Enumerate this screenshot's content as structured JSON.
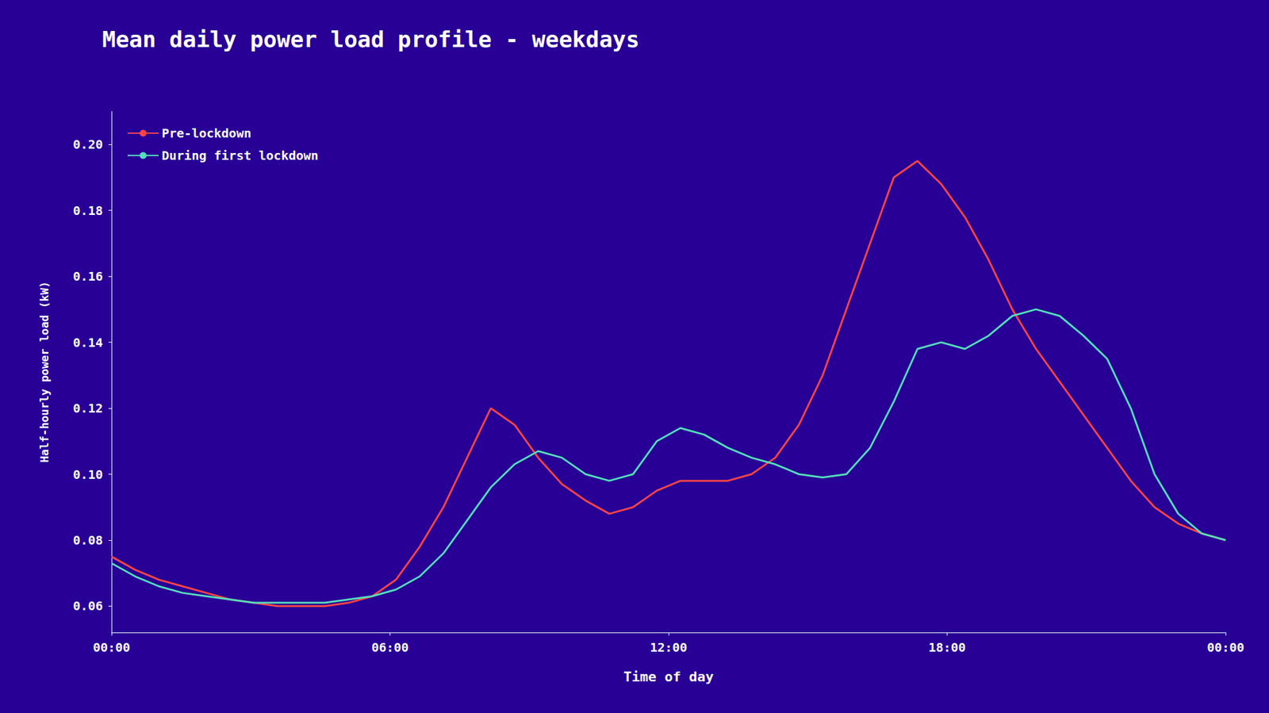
{
  "chart_data": {
    "type": "line",
    "title": "Mean daily power load profile - weekdays",
    "xlabel": "Time of day",
    "ylabel": "Half-hourly power load (kW)",
    "background_color": "#280096",
    "text_color": "#ffffff",
    "x": [
      0,
      1.0212765957,
      2.0425531915,
      3.0638297872,
      4.085106383,
      5.1063829787,
      6.1276595745,
      7.1489361702,
      8.170212766,
      9.1914893617,
      10.2127659574,
      11.2340425532,
      12.2553191489,
      13.2765957447,
      14.2978723404,
      15.3191489362,
      16.3404255319,
      17.3617021277,
      18.3829787234,
      19.4042553191,
      20.4255319149,
      21.4468085106,
      22.4680851064,
      23.4893617021,
      24.5106382979,
      25.5319148936,
      26.5531914894,
      27.5744680851,
      28.5957446809,
      29.6170212766,
      30.6382978723,
      31.6595744681,
      32.6808510638,
      33.7021276596,
      34.7234042553,
      35.7446808511,
      36.7659574468,
      37.7872340426,
      38.8085106383,
      39.829787234,
      40.8510638298,
      41.8723404255,
      42.8936170213,
      43.914893617,
      44.9361702128,
      45.9574468085,
      46.9787234043,
      48
    ],
    "xlim": [
      0,
      48
    ],
    "xticks": [
      {
        "value": 0,
        "label": "00:00"
      },
      {
        "value": 12,
        "label": "06:00"
      },
      {
        "value": 24,
        "label": "12:00"
      },
      {
        "value": 36,
        "label": "18:00"
      },
      {
        "value": 48,
        "label": "00:00"
      }
    ],
    "ylim": [
      0.052,
      0.21
    ],
    "yticks": [
      0.06,
      0.08,
      {
        "value": 0.1,
        "label": "0.10"
      },
      0.12,
      0.14,
      0.16,
      0.18,
      {
        "value": 0.2,
        "label": "0.20"
      }
    ],
    "grid": false,
    "legend": "upper left",
    "series": [
      {
        "name": "Pre-lockdown",
        "color": "#ff4444",
        "values": [
          0.075,
          0.071,
          0.068,
          0.066,
          0.064,
          0.062,
          0.061,
          0.06,
          0.06,
          0.06,
          0.061,
          0.063,
          0.068,
          0.078,
          0.09,
          0.105,
          0.12,
          0.115,
          0.105,
          0.097,
          0.092,
          0.088,
          0.09,
          0.095,
          0.098,
          0.098,
          0.098,
          0.1,
          0.105,
          0.115,
          0.13,
          0.15,
          0.17,
          0.19,
          0.195,
          0.188,
          0.178,
          0.165,
          0.15,
          0.138,
          0.128,
          0.118,
          0.108,
          0.098,
          0.09,
          0.085,
          0.082,
          0.08
        ]
      },
      {
        "name": "During first lockdown",
        "color": "#55ddbb",
        "values": [
          0.073,
          0.069,
          0.066,
          0.064,
          0.063,
          0.062,
          0.061,
          0.061,
          0.061,
          0.061,
          0.062,
          0.063,
          0.065,
          0.069,
          0.076,
          0.086,
          0.096,
          0.103,
          0.107,
          0.105,
          0.1,
          0.098,
          0.1,
          0.11,
          0.114,
          0.112,
          0.108,
          0.105,
          0.103,
          0.1,
          0.099,
          0.1,
          0.108,
          0.122,
          0.138,
          0.14,
          0.138,
          0.142,
          0.148,
          0.15,
          0.148,
          0.142,
          0.135,
          0.12,
          0.1,
          0.088,
          0.082,
          0.08
        ]
      }
    ]
  }
}
